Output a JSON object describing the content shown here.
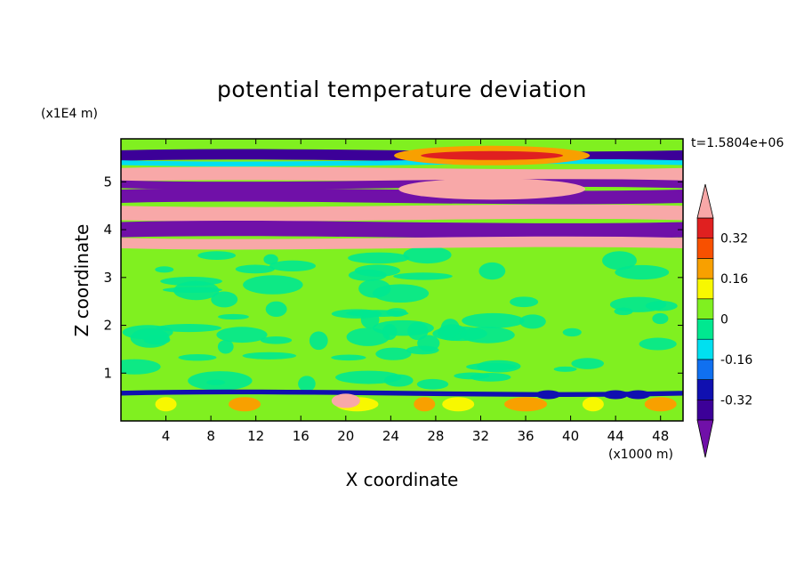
{
  "chart_data": {
    "type": "heatmap",
    "title": "potential temperature deviation",
    "xlabel": "X coordinate",
    "ylabel": "Z coordinate",
    "x_unit": "(x1000 m)",
    "z_unit": "(x1E4 m)",
    "time_label": "t=1.5804e+06",
    "xlim": [
      0,
      50
    ],
    "ylim": [
      0,
      5.9
    ],
    "x_ticks": [
      "4",
      "8",
      "12",
      "16",
      "20",
      "24",
      "28",
      "32",
      "36",
      "40",
      "44",
      "48"
    ],
    "y_ticks": [
      "1",
      "2",
      "3",
      "4",
      "5"
    ],
    "colorbar": {
      "tick_labels": [
        "0.32",
        "0.16",
        "0",
        "-0.16",
        "-0.32"
      ],
      "levels": [
        -0.4,
        -0.32,
        -0.24,
        -0.16,
        -0.08,
        0,
        0.08,
        0.16,
        0.24,
        0.32,
        0.4
      ],
      "colors": [
        "#7010a8",
        "#3c0098",
        "#1010b0",
        "#1070f0",
        "#00e0f0",
        "#00e890",
        "#80f020",
        "#f8f800",
        "#f8a000",
        "#f85000",
        "#e02020",
        "#f8a8a8"
      ]
    },
    "bands": [
      {
        "z": 5.55,
        "thickness": 0.22,
        "color": "#3c0098"
      },
      {
        "z": 5.4,
        "thickness": 0.1,
        "color": "#00e0f0"
      },
      {
        "z": 5.15,
        "thickness": 0.28,
        "color": "#f8a8a8"
      },
      {
        "z": 4.95,
        "thickness": 0.16,
        "color": "#7010a8"
      },
      {
        "z": 4.7,
        "thickness": 0.28,
        "color": "#7010a8"
      },
      {
        "z": 4.35,
        "thickness": 0.3,
        "color": "#f8a8a8"
      },
      {
        "z": 4.0,
        "thickness": 0.32,
        "color": "#7010a8"
      },
      {
        "z": 3.72,
        "thickness": 0.22,
        "color": "#f8a8a8"
      },
      {
        "z": 0.58,
        "thickness": 0.1,
        "color": "#1010b0"
      }
    ],
    "grid": false,
    "legend_placement": "right"
  },
  "colors": {
    "background": "#ffffff",
    "base_field": "#80f020",
    "axis": "#000000"
  }
}
